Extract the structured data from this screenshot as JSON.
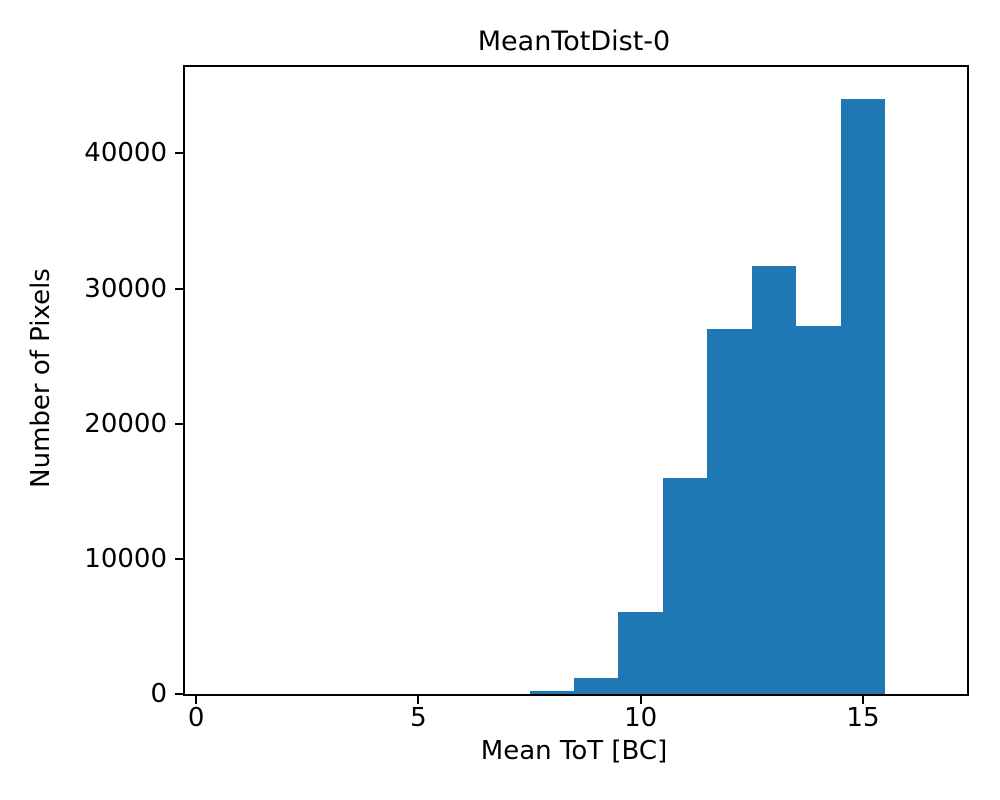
{
  "chart_data": {
    "type": "bar",
    "subtype": "histogram",
    "title": "MeanTotDist-0",
    "xlabel": "Mean ToT [BC]",
    "ylabel": "Number of Pixels",
    "bin_edges": [
      7.5,
      8.5,
      9.5,
      10.5,
      11.5,
      12.5,
      13.5,
      14.5,
      15.5
    ],
    "counts": [
      250,
      1200,
      6100,
      16000,
      27000,
      31700,
      27200,
      44000
    ],
    "xticks": [
      0,
      5,
      10,
      15
    ],
    "xtick_labels": [
      "0",
      "5",
      "10",
      "15"
    ],
    "yticks": [
      0,
      10000,
      20000,
      30000,
      40000
    ],
    "ytick_labels": [
      "0",
      "10000",
      "20000",
      "30000",
      "40000"
    ],
    "xlim": [
      -0.25,
      17.34
    ],
    "ylim": [
      0,
      46400
    ],
    "bar_color": "#1f77b4",
    "axis_color": "#000000",
    "background_color": "#ffffff",
    "grid": false,
    "legend": null
  }
}
